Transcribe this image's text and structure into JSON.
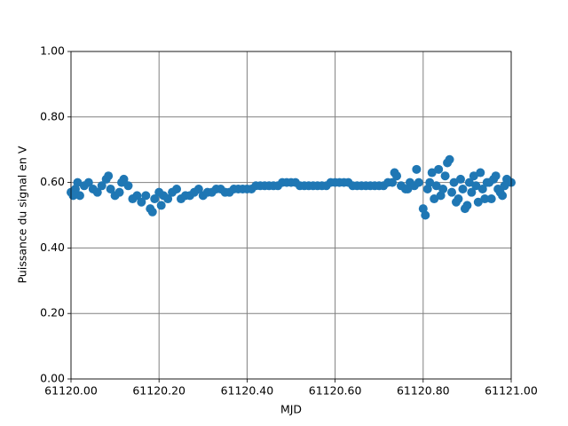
{
  "chart_data": {
    "type": "scatter",
    "xlabel": "MJD",
    "ylabel": "Puissance du signal en V",
    "color": "#1f77b4",
    "grid": true,
    "xlim": [
      61120.0,
      61121.0
    ],
    "xticks": [
      {
        "value": 61120.0,
        "label": "61120.00"
      },
      {
        "value": 61120.2,
        "label": "61120.20"
      },
      {
        "value": 61120.4,
        "label": "61120.40"
      },
      {
        "value": 61120.6,
        "label": "61120.60"
      },
      {
        "value": 61120.8,
        "label": "61120.80"
      },
      {
        "value": 61121.0,
        "label": "61121.00"
      }
    ],
    "ylim": [
      0,
      1
    ],
    "yticks": [
      {
        "value": 0,
        "label": "0.00"
      },
      {
        "value": 0.2,
        "label": "0.20"
      },
      {
        "value": 0.4,
        "label": "0.40"
      },
      {
        "value": 0.6,
        "label": "0.60"
      },
      {
        "value": 0.8,
        "label": "0.80"
      },
      {
        "value": 1,
        "label": "1.00"
      }
    ],
    "x": [
      61120.0,
      61120.01,
      61120.02,
      61120.03,
      61120.04,
      61120.05,
      61120.06,
      61120.07,
      61120.08,
      61120.09,
      61120.1,
      61120.11,
      61120.12,
      61120.13,
      61120.14,
      61120.15,
      61120.16,
      61120.17,
      61120.18,
      61120.19,
      61120.2,
      61120.21,
      61120.22,
      61120.23,
      61120.24,
      61120.25,
      61120.26,
      61120.27,
      61120.28,
      61120.29,
      61120.3,
      61120.31,
      61120.32,
      61120.33,
      61120.34,
      61120.35,
      61120.36,
      61120.37,
      61120.38,
      61120.39,
      61120.4,
      61120.41,
      61120.42,
      61120.43,
      61120.44,
      61120.45,
      61120.46,
      61120.47,
      61120.48,
      61120.49,
      61120.5,
      61120.51,
      61120.52,
      61120.53,
      61120.54,
      61120.55,
      61120.56,
      61120.57,
      61120.58,
      61120.59,
      61120.6,
      61120.61,
      61120.62,
      61120.63,
      61120.64,
      61120.65,
      61120.66,
      61120.67,
      61120.68,
      61120.69,
      61120.7,
      61120.71,
      61120.72,
      61120.73,
      61120.74,
      61120.75,
      61120.76,
      61120.77,
      61120.78,
      61120.79,
      61120.8,
      61120.81,
      61120.82,
      61120.83,
      61120.84,
      61120.85,
      61120.86,
      61120.87,
      61120.88,
      61120.89,
      61120.9,
      61120.91,
      61120.92,
      61120.93,
      61120.94,
      61120.95,
      61120.96,
      61120.97,
      61120.98,
      61120.99,
      61121.0,
      61120.805,
      61120.815,
      61120.825,
      61120.835,
      61120.845,
      61120.855,
      61120.865,
      61120.875,
      61120.885,
      61120.895,
      61120.905,
      61120.915,
      61120.925,
      61120.935,
      61120.945,
      61120.955,
      61120.965,
      61120.975,
      61120.985,
      61120.005,
      61120.015,
      61120.085,
      61120.115,
      61120.185,
      61120.205,
      61120.735,
      61120.765,
      61120.785
    ],
    "values": [
      0.57,
      0.58,
      0.56,
      0.59,
      0.6,
      0.58,
      0.57,
      0.59,
      0.61,
      0.58,
      0.56,
      0.57,
      0.61,
      0.59,
      0.55,
      0.56,
      0.54,
      0.56,
      0.52,
      0.55,
      0.57,
      0.56,
      0.55,
      0.57,
      0.58,
      0.55,
      0.56,
      0.56,
      0.57,
      0.58,
      0.56,
      0.57,
      0.57,
      0.58,
      0.58,
      0.57,
      0.57,
      0.58,
      0.58,
      0.58,
      0.58,
      0.58,
      0.59,
      0.59,
      0.59,
      0.59,
      0.59,
      0.59,
      0.6,
      0.6,
      0.6,
      0.6,
      0.59,
      0.59,
      0.59,
      0.59,
      0.59,
      0.59,
      0.59,
      0.6,
      0.6,
      0.6,
      0.6,
      0.6,
      0.59,
      0.59,
      0.59,
      0.59,
      0.59,
      0.59,
      0.59,
      0.59,
      0.6,
      0.6,
      0.62,
      0.59,
      0.58,
      0.6,
      0.59,
      0.6,
      0.52,
      0.58,
      0.63,
      0.59,
      0.56,
      0.62,
      0.67,
      0.6,
      0.55,
      0.58,
      0.53,
      0.57,
      0.59,
      0.63,
      0.55,
      0.6,
      0.61,
      0.58,
      0.56,
      0.61,
      0.6,
      0.5,
      0.6,
      0.55,
      0.64,
      0.58,
      0.66,
      0.57,
      0.54,
      0.61,
      0.52,
      0.6,
      0.62,
      0.54,
      0.58,
      0.6,
      0.55,
      0.62,
      0.57,
      0.59,
      0.56,
      0.6,
      0.62,
      0.6,
      0.51,
      0.53,
      0.63,
      0.58,
      0.64
    ]
  }
}
